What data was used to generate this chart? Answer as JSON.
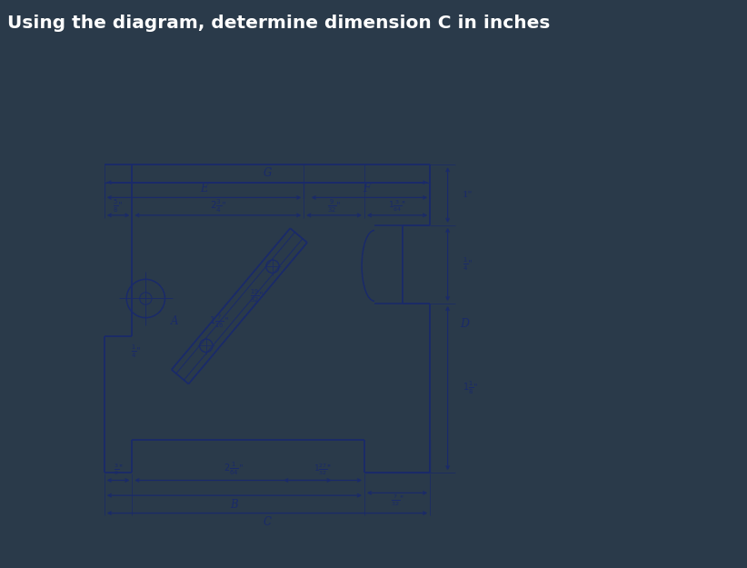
{
  "title": "Using the diagram, determine dimension C in inches",
  "title_color": "#ffffff",
  "bg_color": "#2a3a4a",
  "diagram_bg": "#d4d4d4",
  "line_color": "#1a2a6a",
  "dim_color": "#1a2a6a",
  "labels": {
    "G": "G",
    "E": "E",
    "F": "F",
    "A": "A",
    "B": "B",
    "C": "C",
    "D": "D"
  },
  "dims": {
    "top_5_8": "$\\frac{5}{8}$\"",
    "top_2_3_4": "$2\\frac{3}{4}$\"",
    "top_9_32": "$\\frac{9}{32}$\"",
    "top_1_3_64": "$1\\frac{3}{64}$\"",
    "slot_19_32": "$\\frac{19}{32}$\"",
    "slot_1_7_16": "$1\\frac{7}{16}$\"",
    "slot_1_4": "$\\frac{1}{4}$\"",
    "right_1in": "1\"",
    "right_1_4": "$\\frac{1}{4}$\"",
    "right_1_1_8": "$1\\frac{1}{8}$\"",
    "bot_3_8": "$\\frac{3}{8}$\"",
    "bot_2_1_64": "$2\\frac{1}{64}$\"",
    "bot_1_27_32": "$1\\frac{27}{32}$\"",
    "bot_7_32": "$\\frac{7}{32}$\""
  }
}
